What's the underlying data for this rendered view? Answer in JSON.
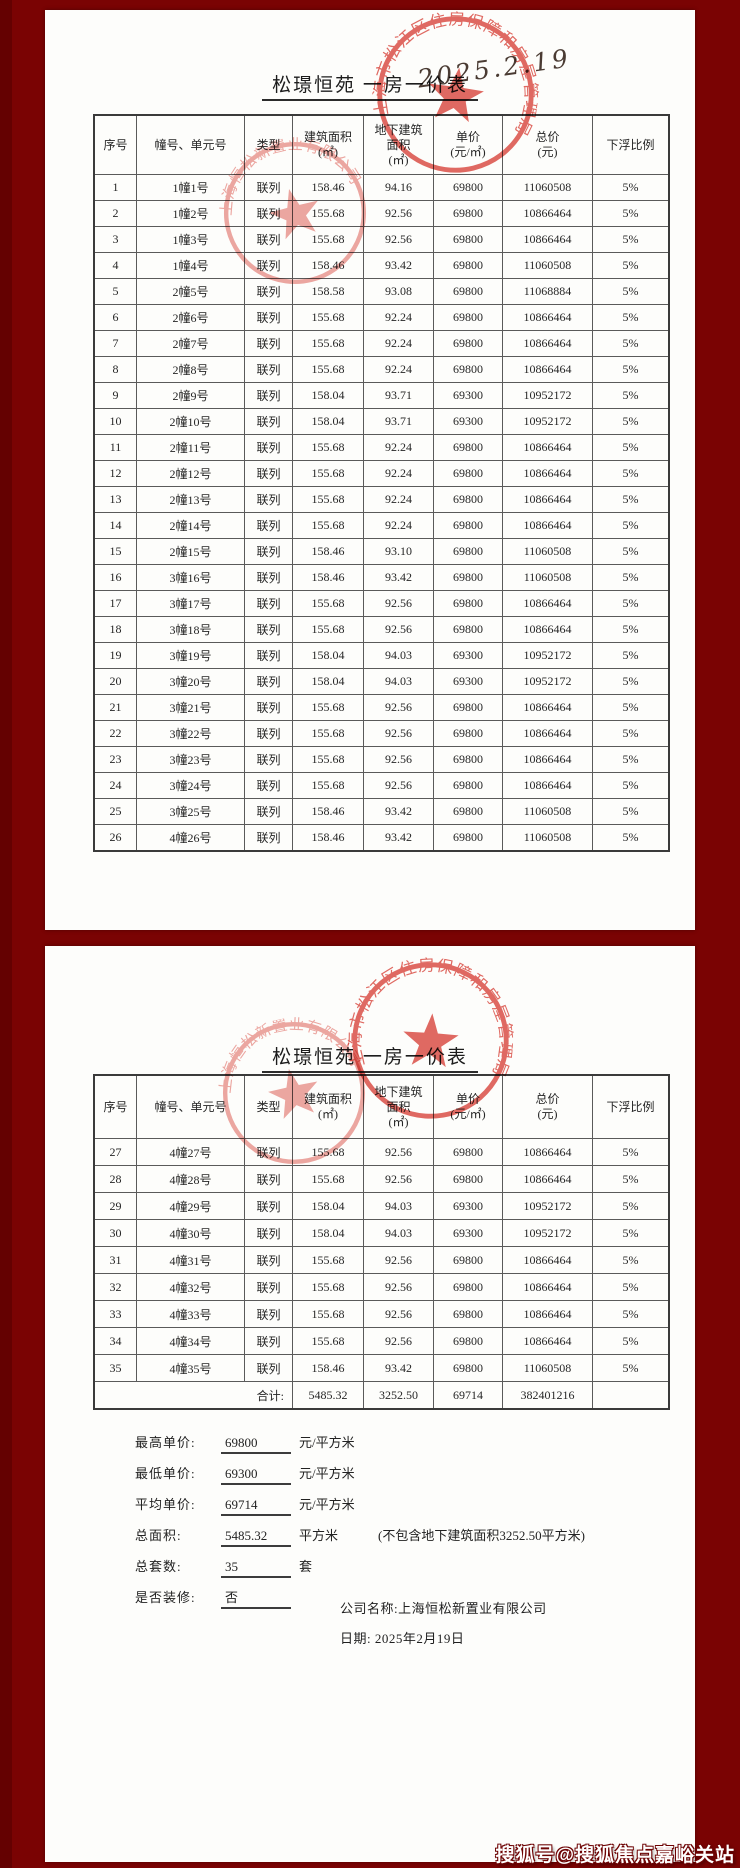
{
  "document": {
    "title": "松璟恒苑  一房一价表",
    "watermark": "搜狐号@搜狐焦点嘉峪关站"
  },
  "stamps": {
    "bureau_ring_text": "上海市松江区住房保障和房屋管理局",
    "company_ring_text": "上海恒松新置业有限公司",
    "handwritten_date": "2025.2.19"
  },
  "table": {
    "headers": [
      "序号",
      "幢号、单元号",
      "类型",
      "建筑面积\n(㎡)",
      "地下建筑\n面积\n(㎡)",
      "单价\n(元/㎡)",
      "总价\n(元)",
      "下浮比例"
    ]
  },
  "page1": {
    "rows": [
      [
        "1",
        "1幢1号",
        "联列",
        "158.46",
        "94.16",
        "69800",
        "11060508",
        "5%"
      ],
      [
        "2",
        "1幢2号",
        "联列",
        "155.68",
        "92.56",
        "69800",
        "10866464",
        "5%"
      ],
      [
        "3",
        "1幢3号",
        "联列",
        "155.68",
        "92.56",
        "69800",
        "10866464",
        "5%"
      ],
      [
        "4",
        "1幢4号",
        "联列",
        "158.46",
        "93.42",
        "69800",
        "11060508",
        "5%"
      ],
      [
        "5",
        "2幢5号",
        "联列",
        "158.58",
        "93.08",
        "69800",
        "11068884",
        "5%"
      ],
      [
        "6",
        "2幢6号",
        "联列",
        "155.68",
        "92.24",
        "69800",
        "10866464",
        "5%"
      ],
      [
        "7",
        "2幢7号",
        "联列",
        "155.68",
        "92.24",
        "69800",
        "10866464",
        "5%"
      ],
      [
        "8",
        "2幢8号",
        "联列",
        "155.68",
        "92.24",
        "69800",
        "10866464",
        "5%"
      ],
      [
        "9",
        "2幢9号",
        "联列",
        "158.04",
        "93.71",
        "69300",
        "10952172",
        "5%"
      ],
      [
        "10",
        "2幢10号",
        "联列",
        "158.04",
        "93.71",
        "69300",
        "10952172",
        "5%"
      ],
      [
        "11",
        "2幢11号",
        "联列",
        "155.68",
        "92.24",
        "69800",
        "10866464",
        "5%"
      ],
      [
        "12",
        "2幢12号",
        "联列",
        "155.68",
        "92.24",
        "69800",
        "10866464",
        "5%"
      ],
      [
        "13",
        "2幢13号",
        "联列",
        "155.68",
        "92.24",
        "69800",
        "10866464",
        "5%"
      ],
      [
        "14",
        "2幢14号",
        "联列",
        "155.68",
        "92.24",
        "69800",
        "10866464",
        "5%"
      ],
      [
        "15",
        "2幢15号",
        "联列",
        "158.46",
        "93.10",
        "69800",
        "11060508",
        "5%"
      ],
      [
        "16",
        "3幢16号",
        "联列",
        "158.46",
        "93.42",
        "69800",
        "11060508",
        "5%"
      ],
      [
        "17",
        "3幢17号",
        "联列",
        "155.68",
        "92.56",
        "69800",
        "10866464",
        "5%"
      ],
      [
        "18",
        "3幢18号",
        "联列",
        "155.68",
        "92.56",
        "69800",
        "10866464",
        "5%"
      ],
      [
        "19",
        "3幢19号",
        "联列",
        "158.04",
        "94.03",
        "69300",
        "10952172",
        "5%"
      ],
      [
        "20",
        "3幢20号",
        "联列",
        "158.04",
        "94.03",
        "69300",
        "10952172",
        "5%"
      ],
      [
        "21",
        "3幢21号",
        "联列",
        "155.68",
        "92.56",
        "69800",
        "10866464",
        "5%"
      ],
      [
        "22",
        "3幢22号",
        "联列",
        "155.68",
        "92.56",
        "69800",
        "10866464",
        "5%"
      ],
      [
        "23",
        "3幢23号",
        "联列",
        "155.68",
        "92.56",
        "69800",
        "10866464",
        "5%"
      ],
      [
        "24",
        "3幢24号",
        "联列",
        "155.68",
        "92.56",
        "69800",
        "10866464",
        "5%"
      ],
      [
        "25",
        "3幢25号",
        "联列",
        "158.46",
        "93.42",
        "69800",
        "11060508",
        "5%"
      ],
      [
        "26",
        "4幢26号",
        "联列",
        "158.46",
        "93.42",
        "69800",
        "11060508",
        "5%"
      ]
    ]
  },
  "page2": {
    "rows": [
      [
        "27",
        "4幢27号",
        "联列",
        "155.68",
        "92.56",
        "69800",
        "10866464",
        "5%"
      ],
      [
        "28",
        "4幢28号",
        "联列",
        "155.68",
        "92.56",
        "69800",
        "10866464",
        "5%"
      ],
      [
        "29",
        "4幢29号",
        "联列",
        "158.04",
        "94.03",
        "69300",
        "10952172",
        "5%"
      ],
      [
        "30",
        "4幢30号",
        "联列",
        "158.04",
        "94.03",
        "69300",
        "10952172",
        "5%"
      ],
      [
        "31",
        "4幢31号",
        "联列",
        "155.68",
        "92.56",
        "69800",
        "10866464",
        "5%"
      ],
      [
        "32",
        "4幢32号",
        "联列",
        "155.68",
        "92.56",
        "69800",
        "10866464",
        "5%"
      ],
      [
        "33",
        "4幢33号",
        "联列",
        "155.68",
        "92.56",
        "69800",
        "10866464",
        "5%"
      ],
      [
        "34",
        "4幢34号",
        "联列",
        "155.68",
        "92.56",
        "69800",
        "10866464",
        "5%"
      ],
      [
        "35",
        "4幢35号",
        "联列",
        "158.46",
        "93.42",
        "69800",
        "11060508",
        "5%"
      ]
    ],
    "total_row": [
      "合计:",
      "5485.32",
      "3252.50",
      "69714",
      "382401216",
      ""
    ]
  },
  "summary": {
    "items": [
      {
        "label": "最高单价:",
        "value": "69800",
        "unit": "元/平方米",
        "note": ""
      },
      {
        "label": "最低单价:",
        "value": "69300",
        "unit": "元/平方米",
        "note": ""
      },
      {
        "label": "平均单价:",
        "value": "69714",
        "unit": "元/平方米",
        "note": ""
      },
      {
        "label": "总面积:",
        "value": "5485.32",
        "unit": "平方米",
        "note": "(不包含地下建筑面积3252.50平方米)"
      },
      {
        "label": "总套数:",
        "value": "35",
        "unit": "套",
        "note": ""
      },
      {
        "label": "是否装修:",
        "value": "否",
        "unit": "",
        "note": ""
      }
    ]
  },
  "footer": {
    "company": "公司名称:上海恒松新置业有限公司",
    "date": "日期: 2025年2月19日"
  }
}
